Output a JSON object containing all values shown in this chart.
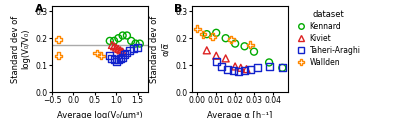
{
  "panel_A": {
    "title": "A",
    "xlabel": "Average log(V₀/μm³)",
    "ylabel": "Standard dev of\nlog(V₀/̅V₀)",
    "xlim": [
      -0.5,
      1.75
    ],
    "ylim": [
      0.0,
      0.32
    ],
    "xticks": [
      -0.5,
      0.0,
      0.5,
      1.0,
      1.5
    ],
    "yticks": [
      0.0,
      0.1,
      0.2,
      0.3
    ],
    "hline_y": 0.175,
    "hline_color": "#aaaaaa",
    "Kennard": {
      "x": [
        0.85,
        0.95,
        1.05,
        1.15,
        1.25,
        1.35,
        1.45,
        1.55
      ],
      "y": [
        0.19,
        0.19,
        0.2,
        0.21,
        0.21,
        0.19,
        0.18,
        0.18
      ]
    },
    "Kiviet": {
      "x": [
        0.9,
        0.95,
        1.0,
        1.05,
        1.1,
        1.15
      ],
      "y": [
        0.175,
        0.17,
        0.165,
        0.16,
        0.155,
        0.15
      ]
    },
    "Taheri": {
      "x": [
        0.85,
        0.9,
        0.95,
        1.0,
        1.05,
        1.1,
        1.15,
        1.2,
        1.25,
        1.3,
        1.4,
        1.5
      ],
      "y": [
        0.135,
        0.125,
        0.12,
        0.115,
        0.12,
        0.125,
        0.13,
        0.14,
        0.145,
        0.155,
        0.16,
        0.165
      ]
    },
    "Wallden": {
      "x": [
        -0.35,
        -0.35,
        0.55,
        0.65
      ],
      "y": [
        0.195,
        0.135,
        0.145,
        0.135
      ]
    }
  },
  "panel_B": {
    "title": "B",
    "xlabel": "Average α [h⁻¹]",
    "ylabel": "Standard dev of\nα/α̅",
    "xlim": [
      -0.003,
      0.048
    ],
    "ylim": [
      0.0,
      0.32
    ],
    "xticks": [
      0.0,
      0.01,
      0.02,
      0.03,
      0.04
    ],
    "yticks": [
      0.0,
      0.1,
      0.2,
      0.3
    ],
    "Kennard": {
      "x": [
        0.005,
        0.01,
        0.015,
        0.02,
        0.025,
        0.03,
        0.038,
        0.045
      ],
      "y": [
        0.215,
        0.22,
        0.2,
        0.18,
        0.17,
        0.15,
        0.11,
        0.09
      ]
    },
    "Kiviet": {
      "x": [
        0.005,
        0.01,
        0.015,
        0.02,
        0.023,
        0.026
      ],
      "y": [
        0.155,
        0.135,
        0.125,
        0.095,
        0.09,
        0.085
      ]
    },
    "Taheri": {
      "x": [
        0.01,
        0.013,
        0.016,
        0.019,
        0.022,
        0.025,
        0.028,
        0.032,
        0.038,
        0.045
      ],
      "y": [
        0.115,
        0.095,
        0.085,
        0.08,
        0.075,
        0.08,
        0.085,
        0.09,
        0.095,
        0.09
      ]
    },
    "Wallden": {
      "x": [
        0.0,
        0.003,
        0.008,
        0.018,
        0.028
      ],
      "y": [
        0.235,
        0.215,
        0.205,
        0.195,
        0.175
      ]
    }
  },
  "colors": {
    "Kennard": "#00aa00",
    "Kiviet": "#dd2222",
    "Taheri": "#1122cc",
    "Wallden": "#ff8800"
  },
  "legend": {
    "title": "dataset",
    "entries": [
      "Kennard",
      "Kiviet",
      "Taheri-Araghi",
      "Wallden"
    ]
  }
}
